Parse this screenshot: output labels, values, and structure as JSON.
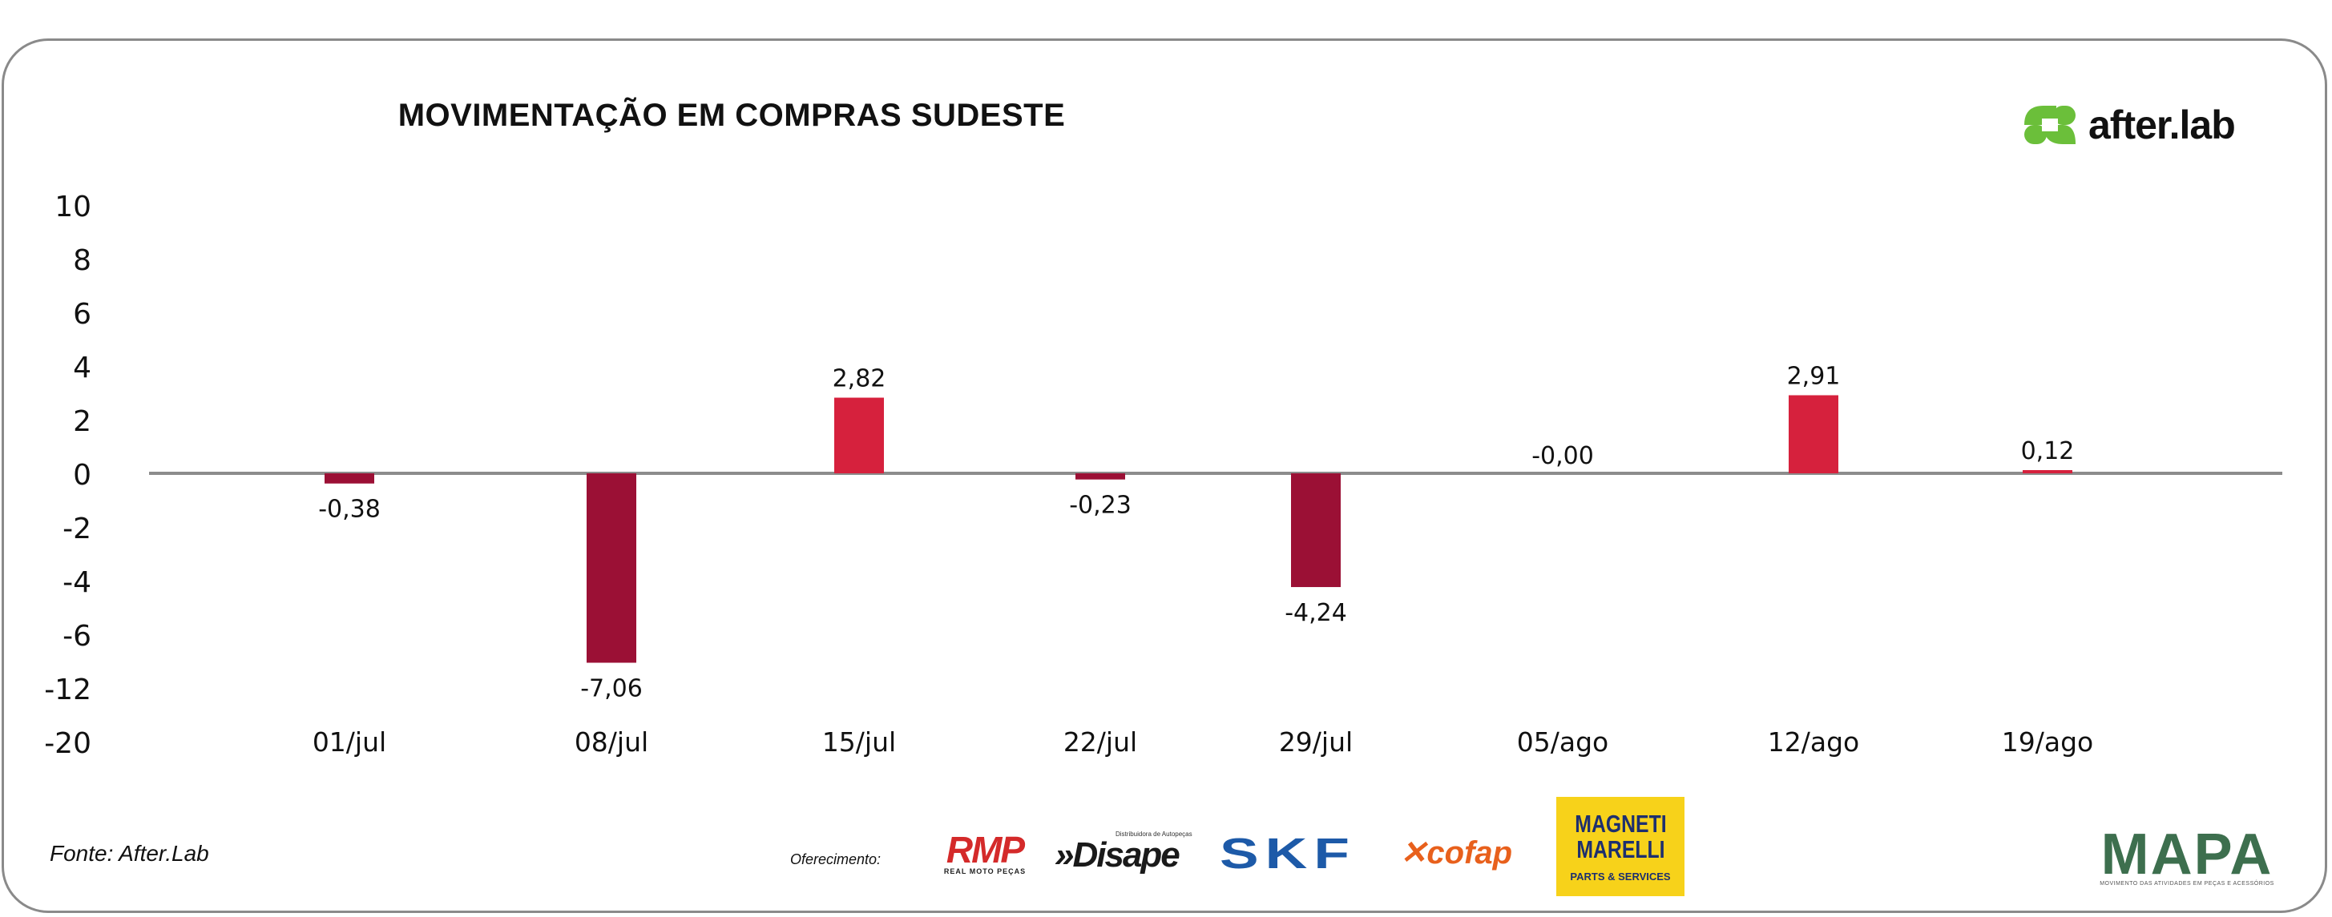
{
  "header": {
    "title": "MOVIMENTAÇÃO EM COMPRAS SUDESTE",
    "brand": "after.lab"
  },
  "footer": {
    "source": "Fonte: After.Lab",
    "offer_label": "Oferecimento:",
    "sponsors": {
      "rmp": {
        "name": "RMP",
        "sub": "REAL MOTO PEÇAS"
      },
      "disape": {
        "name": "»Disape",
        "sub": "Distribuidora de Autopeças"
      },
      "skf": {
        "name": "SKF"
      },
      "cofap": {
        "name": "✕cofap"
      },
      "magneti": {
        "name": "MAGNETI\nMARELLI",
        "sub": "PARTS & SERVICES"
      },
      "mapa": {
        "name": "MAPA",
        "sub": "MOVIMENTO DAS ATIVIDADES EM PEÇAS E ACESSÓRIOS"
      }
    }
  },
  "colors": {
    "positive": "#d6213d",
    "negative": "#9b1035",
    "zero_line": "#8c8c8c",
    "brand_green": "#6bbf3a"
  },
  "chart_data": {
    "type": "bar",
    "title": "MOVIMENTAÇÃO EM COMPRAS SUDESTE",
    "categories": [
      "01/jul",
      "08/jul",
      "15/jul",
      "22/jul",
      "29/jul",
      "05/ago",
      "12/ago",
      "19/ago"
    ],
    "values": [
      -0.38,
      -7.06,
      2.82,
      -0.23,
      -4.24,
      -0.0,
      2.91,
      0.12
    ],
    "value_labels": [
      "-0,38",
      "-7,06",
      "2,82",
      "-0,23",
      "-4,24",
      "-0,00",
      "2,91",
      "0,12"
    ],
    "y_tick_labels": [
      "10",
      "8",
      "6",
      "4",
      "2",
      "0",
      "-2",
      "-4",
      "-6",
      "-12",
      "-20"
    ],
    "y_tick_values": [
      10,
      8,
      6,
      4,
      2,
      0,
      -2,
      -4,
      -6,
      -12,
      -20
    ],
    "scale_note": "non-linear y axis",
    "xlabel": "",
    "ylabel": "",
    "grid": false,
    "legend": "none"
  }
}
